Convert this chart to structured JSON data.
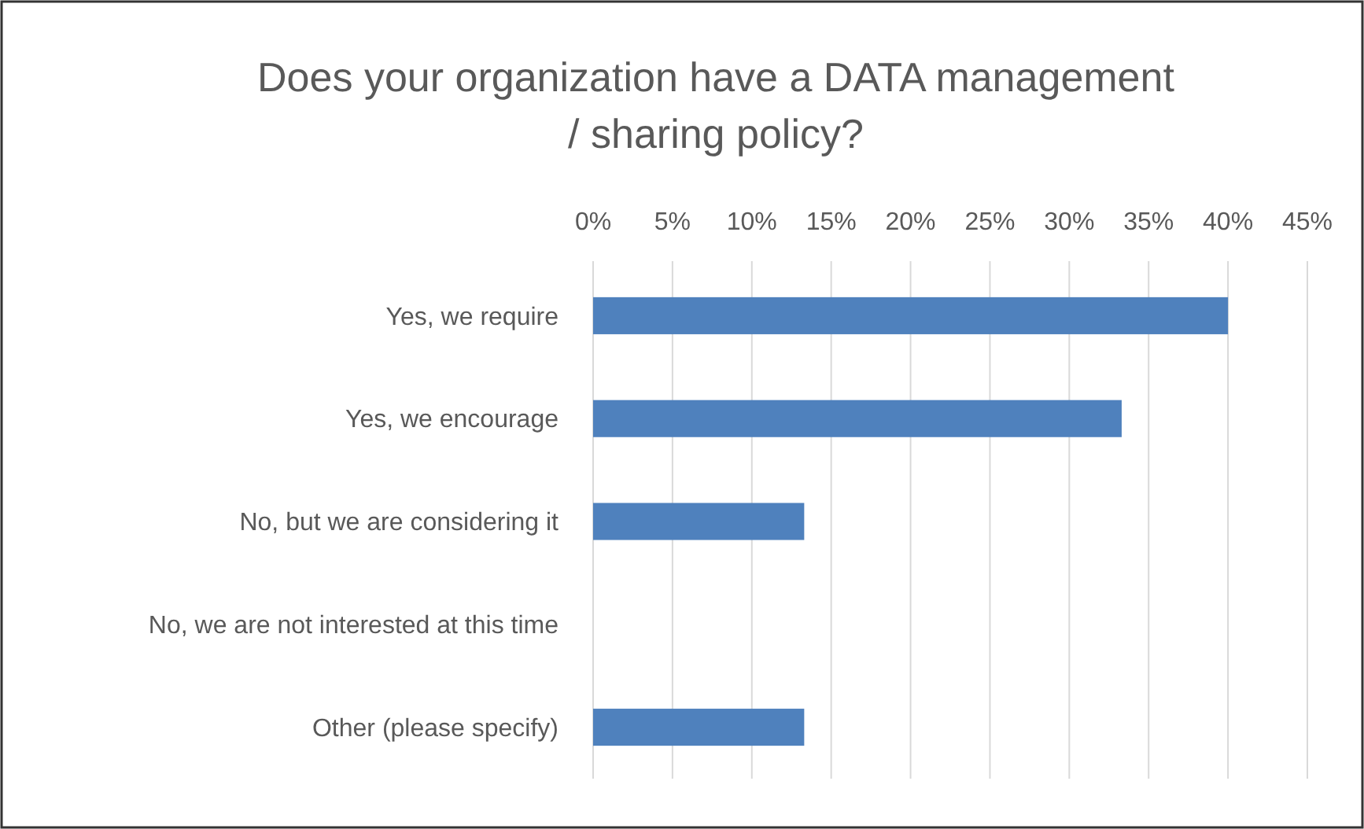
{
  "chart_data": {
    "type": "bar",
    "orientation": "horizontal",
    "title": "Does your organization have a DATA management / sharing policy?",
    "categories": [
      "Yes, we require",
      "Yes, we encourage",
      "No, but we are considering it",
      "No, we are not interested at this time",
      "Other (please specify)"
    ],
    "values": [
      40,
      33.3,
      13.3,
      0,
      13.3
    ],
    "color": "#4f81bd",
    "xlim": [
      0,
      45
    ],
    "xticks": [
      {
        "value": 0,
        "label": "0%"
      },
      {
        "value": 5,
        "label": "5%"
      },
      {
        "value": 10,
        "label": "10%"
      },
      {
        "value": 15,
        "label": "15%"
      },
      {
        "value": 20,
        "label": "20%"
      },
      {
        "value": 25,
        "label": "25%"
      },
      {
        "value": 30,
        "label": "30%"
      },
      {
        "value": 35,
        "label": "35%"
      },
      {
        "value": 40,
        "label": "40%"
      },
      {
        "value": 45,
        "label": "45%"
      }
    ],
    "grid": "x"
  }
}
